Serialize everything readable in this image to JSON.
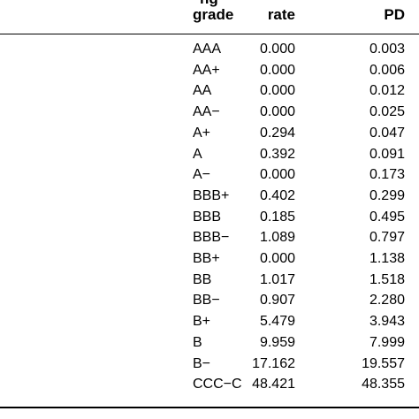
{
  "header": {
    "top_row_partial": [
      "ng",
      ""
    ],
    "columns": [
      "grade",
      "rate",
      "PD"
    ]
  },
  "rows": [
    {
      "grade": "AAA",
      "rate": "0.000",
      "pd": "0.003"
    },
    {
      "grade": "AA+",
      "rate": "0.000",
      "pd": "0.006"
    },
    {
      "grade": "AA",
      "rate": "0.000",
      "pd": "0.012"
    },
    {
      "grade": "AA−",
      "rate": "0.000",
      "pd": "0.025"
    },
    {
      "grade": "A+",
      "rate": "0.294",
      "pd": "0.047"
    },
    {
      "grade": "A",
      "rate": "0.392",
      "pd": "0.091"
    },
    {
      "grade": "A−",
      "rate": "0.000",
      "pd": "0.173"
    },
    {
      "grade": "BBB+",
      "rate": "0.402",
      "pd": "0.299"
    },
    {
      "grade": "BBB",
      "rate": "0.185",
      "pd": "0.495"
    },
    {
      "grade": "BBB−",
      "rate": "1.089",
      "pd": "0.797"
    },
    {
      "grade": "BB+",
      "rate": "0.000",
      "pd": "1.138"
    },
    {
      "grade": "BB",
      "rate": "1.017",
      "pd": "1.518"
    },
    {
      "grade": "BB−",
      "rate": "0.907",
      "pd": "2.280"
    },
    {
      "grade": "B+",
      "rate": "5.479",
      "pd": "3.943"
    },
    {
      "grade": "B",
      "rate": "9.959",
      "pd": "7.999"
    },
    {
      "grade": "B−",
      "rate": "17.162",
      "pd": "19.557"
    },
    {
      "grade": "CCC−C",
      "rate": "48.421",
      "pd": "48.355"
    }
  ]
}
